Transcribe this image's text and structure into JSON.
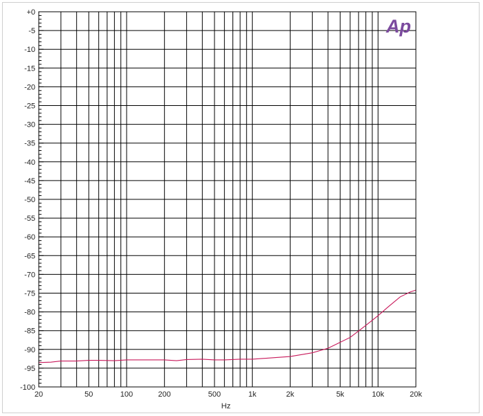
{
  "chart_data": {
    "type": "line",
    "title": "",
    "xlabel": "Hz",
    "ylabel": "",
    "x_scale": "log",
    "xlim": [
      20,
      20000
    ],
    "ylim": [
      -100,
      0
    ],
    "grid": true,
    "x_ticks": [
      {
        "value": 20,
        "label": "20"
      },
      {
        "value": 50,
        "label": "50"
      },
      {
        "value": 100,
        "label": "100"
      },
      {
        "value": 200,
        "label": "200"
      },
      {
        "value": 500,
        "label": "500"
      },
      {
        "value": 1000,
        "label": "1k"
      },
      {
        "value": 2000,
        "label": "2k"
      },
      {
        "value": 5000,
        "label": "5k"
      },
      {
        "value": 10000,
        "label": "10k"
      },
      {
        "value": 20000,
        "label": "20k"
      }
    ],
    "y_ticks": [
      {
        "value": 0,
        "label": "+0"
      },
      {
        "value": -5,
        "label": "-5"
      },
      {
        "value": -10,
        "label": "-10"
      },
      {
        "value": -15,
        "label": "-15"
      },
      {
        "value": -20,
        "label": "-20"
      },
      {
        "value": -25,
        "label": "-25"
      },
      {
        "value": -30,
        "label": "-30"
      },
      {
        "value": -35,
        "label": "-35"
      },
      {
        "value": -40,
        "label": "-40"
      },
      {
        "value": -45,
        "label": "-45"
      },
      {
        "value": -50,
        "label": "-50"
      },
      {
        "value": -55,
        "label": "-55"
      },
      {
        "value": -60,
        "label": "-60"
      },
      {
        "value": -65,
        "label": "-65"
      },
      {
        "value": -70,
        "label": "-70"
      },
      {
        "value": -75,
        "label": "-75"
      },
      {
        "value": -80,
        "label": "-80"
      },
      {
        "value": -85,
        "label": "-85"
      },
      {
        "value": -90,
        "label": "-90"
      },
      {
        "value": -95,
        "label": "-95"
      },
      {
        "value": -100,
        "label": "-100"
      }
    ],
    "series": [
      {
        "color": "#c8185a",
        "x": [
          20,
          25,
          30,
          40,
          50,
          60,
          80,
          100,
          150,
          200,
          250,
          300,
          400,
          500,
          600,
          800,
          1000,
          1500,
          2000,
          3000,
          4000,
          5000,
          6000,
          7000,
          8000,
          10000,
          12000,
          15000,
          18000,
          20000
        ],
        "y": [
          -93.5,
          -93.4,
          -93.1,
          -93.1,
          -92.9,
          -92.9,
          -93.0,
          -92.8,
          -92.8,
          -92.8,
          -93.0,
          -92.7,
          -92.6,
          -92.8,
          -92.8,
          -92.6,
          -92.6,
          -92.2,
          -91.9,
          -90.9,
          -89.7,
          -88.1,
          -86.8,
          -85.1,
          -83.6,
          -81.0,
          -78.7,
          -76.0,
          -74.7,
          -74.2
        ]
      }
    ]
  },
  "logo": {
    "text": "Ap",
    "color": "#7b4a9e"
  }
}
